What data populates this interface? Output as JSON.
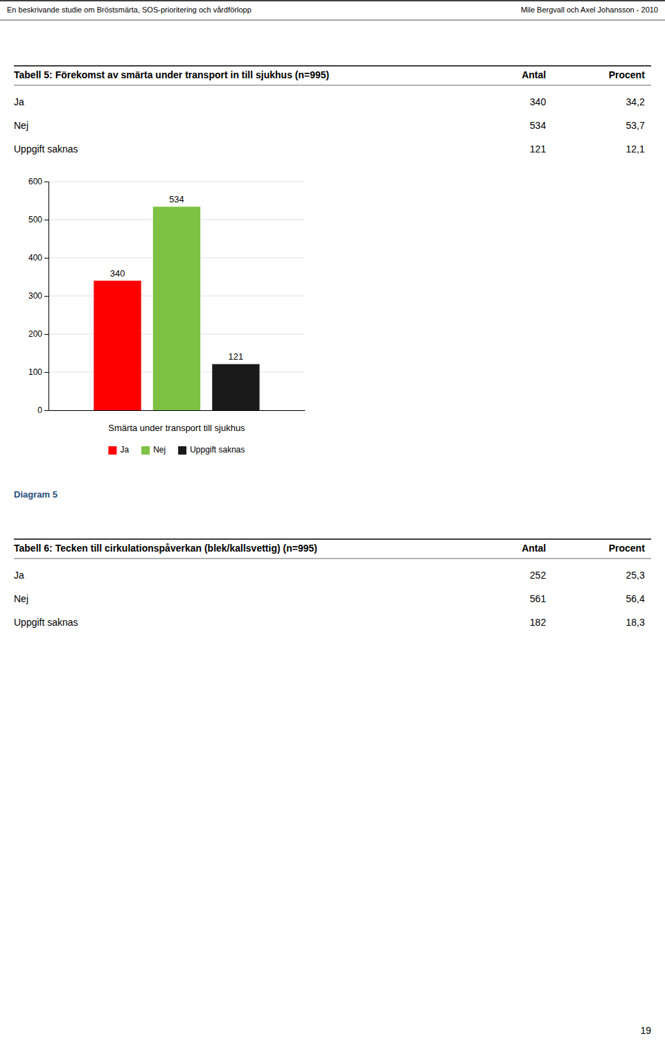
{
  "header_left": "En beskrivande studie om Bröstsmärta, SOS-prioritering och vårdförlopp",
  "header_right": "Mile Bergvall och Axel Johansson - 2010",
  "tables": [
    {
      "title": "Tabell 5: Förekomst av smärta under transport in till sjukhus (n=995)",
      "columns": [
        "Antal",
        "Procent"
      ],
      "rows": [
        [
          "Ja",
          "340",
          "34,2"
        ],
        [
          "Nej",
          "534",
          "53,7"
        ],
        [
          "Uppgift saknas",
          "121",
          "12,1"
        ]
      ]
    },
    {
      "title": "Tabell 6: Tecken till cirkulationspåverkan (blek/kallsvettig) (n=995)",
      "columns": [
        "Antal",
        "Procent"
      ],
      "rows": [
        [
          "Ja",
          "252",
          "25,3"
        ],
        [
          "Nej",
          "561",
          "56,4"
        ],
        [
          "Uppgift saknas",
          "182",
          "18,3"
        ]
      ]
    }
  ],
  "chart_data": {
    "type": "bar",
    "title": "Diagram 5",
    "x_label": "Smärta under transport till sjukhus",
    "categories": [
      null
    ],
    "series": [
      {
        "name": "Ja",
        "color": "#ff0000",
        "values": [
          340
        ]
      },
      {
        "name": "Nej",
        "color": "#7dc242",
        "values": [
          534
        ]
      },
      {
        "name": "Uppgift saknas",
        "color": "#1a1a1a",
        "values": [
          121
        ]
      }
    ],
    "ylim": [
      0,
      600
    ],
    "yticks": [
      0,
      100,
      200,
      300,
      400,
      500,
      600
    ],
    "grid": true,
    "legend": "bottom",
    "data_labels": true,
    "tick_labels": "y"
  },
  "page_number": "19"
}
